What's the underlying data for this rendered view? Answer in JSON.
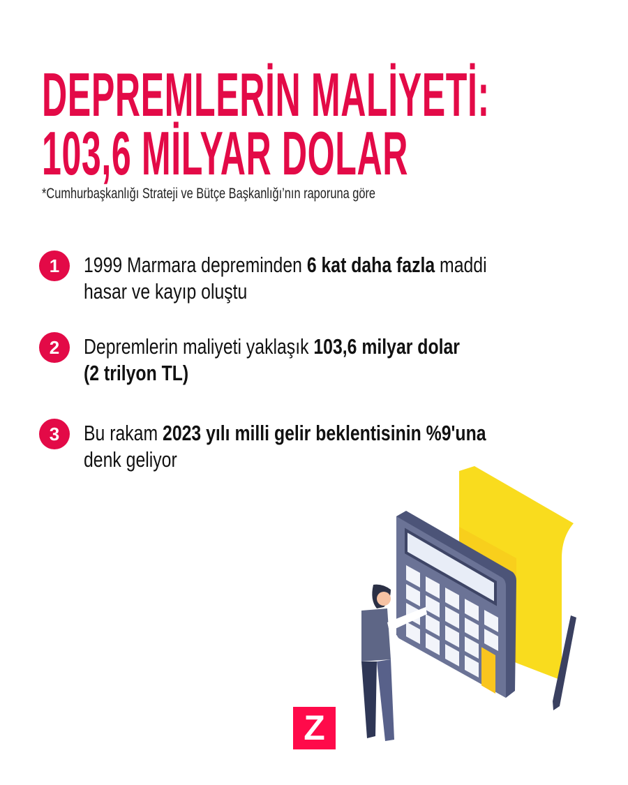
{
  "title": {
    "line1": "DEPREMLERİN MALİYETİ:",
    "line2": "103,6 MİLYAR DOLAR"
  },
  "source": "*Cumhurbaşkanlığı Strateji ve Bütçe Başkanlığı’nın raporuna göre",
  "items": [
    {
      "number": "1",
      "pre": "1999 Marmara depreminden ",
      "bold": "6 kat daha fazla",
      "post": " maddi",
      "line2_pre": "hasar ve kayıp oluştu",
      "line2_bold": ""
    },
    {
      "number": "2",
      "pre": "Depremlerin maliyeti yaklaşık ",
      "bold": "103,6 milyar dolar",
      "post": "",
      "line2_pre": "",
      "line2_bold": "(2 trilyon TL)"
    },
    {
      "number": "3",
      "pre": "Bu rakam ",
      "bold": "2023 yılı milli gelir beklentisinin %9'una",
      "post": "",
      "line2_pre": "denk geliyor",
      "line2_bold": ""
    }
  ],
  "logo": "Z",
  "colors": {
    "accent": "#e30a47",
    "calculator": "#6b7396",
    "paper": "#f9dc1e"
  },
  "illustration": "man-using-calculator"
}
